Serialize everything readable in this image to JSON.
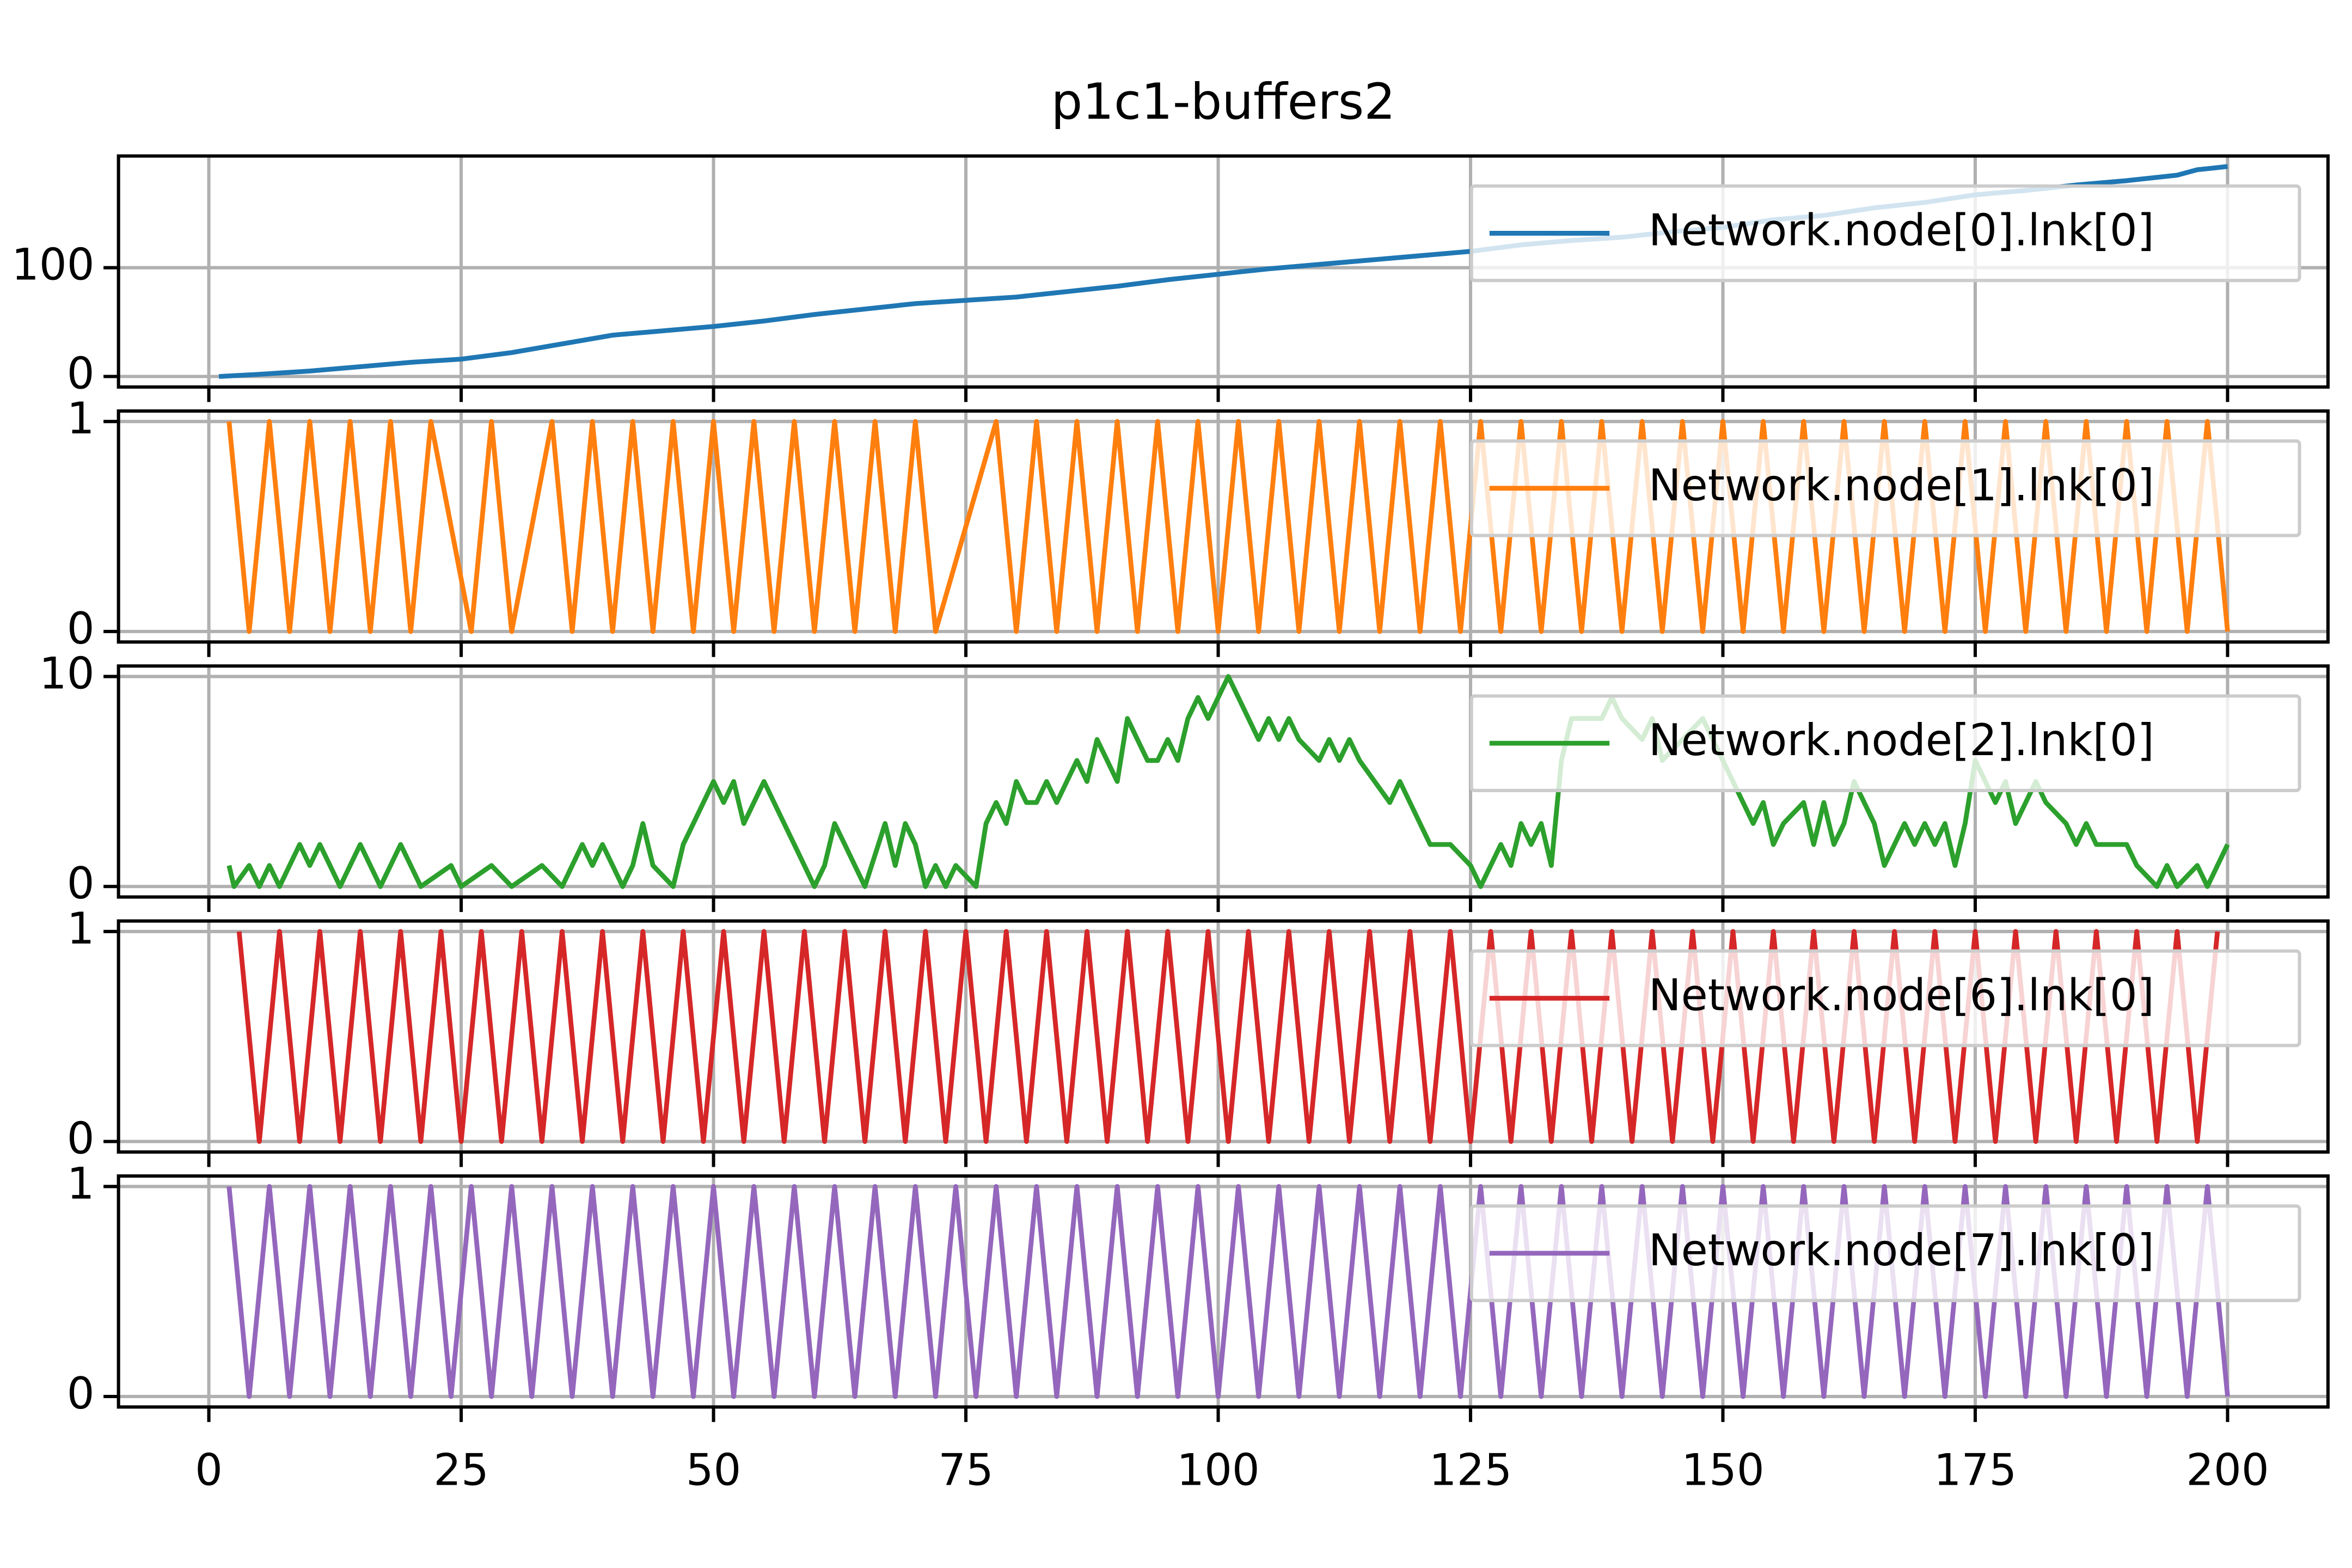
{
  "chart_data": [
    {
      "type": "line",
      "title": "p1c1-buffers2",
      "xlim": [
        -8.95,
        209.95
      ],
      "xticks": [
        0,
        25,
        50,
        75,
        100,
        125,
        150,
        175,
        200
      ],
      "ylim": [
        -9.65,
        202.65
      ],
      "yticks": [
        0,
        100
      ],
      "grid": true,
      "legend": "upper right",
      "x": [
        1,
        5,
        10,
        15,
        20,
        25,
        30,
        35,
        40,
        45,
        50,
        55,
        60,
        65,
        70,
        75,
        80,
        85,
        90,
        95,
        100,
        105,
        110,
        115,
        120,
        125,
        130,
        135,
        140,
        145,
        150,
        155,
        160,
        165,
        170,
        175,
        180,
        185,
        190,
        195,
        197,
        200
      ],
      "series": [
        {
          "name": "Network.node[0].lnk[0]",
          "color": "#1f77b4",
          "values": [
            0,
            2,
            5,
            9,
            13,
            16,
            22,
            30,
            38,
            42,
            46,
            51,
            57,
            62,
            67,
            70,
            73,
            78,
            83,
            89,
            94,
            99,
            103,
            107,
            111,
            115,
            121,
            125,
            128,
            133,
            137,
            144,
            148,
            155,
            160,
            167,
            171,
            176,
            180,
            185,
            190,
            193
          ]
        }
      ]
    },
    {
      "type": "line",
      "xlim": [
        -8.95,
        209.95
      ],
      "xticks": [
        0,
        25,
        50,
        75,
        100,
        125,
        150,
        175,
        200
      ],
      "ylim": [
        -0.05,
        1.05
      ],
      "yticks": [
        0,
        1
      ],
      "grid": true,
      "legend": "upper right",
      "x": [
        2,
        4,
        6,
        8,
        10,
        12,
        14,
        16,
        18,
        20,
        22,
        26,
        28,
        30,
        34,
        36,
        38,
        40,
        42,
        44,
        46,
        48,
        50,
        52,
        54,
        56,
        58,
        60,
        62,
        64,
        66,
        68,
        70,
        72,
        78,
        80,
        82,
        84,
        86,
        88,
        90,
        92,
        94,
        96,
        98,
        100,
        102,
        104,
        106,
        108,
        110,
        112,
        114,
        116,
        118,
        120,
        122,
        124,
        126,
        128,
        130,
        132,
        134,
        136,
        138,
        140,
        142,
        144,
        146,
        148,
        150,
        152,
        154,
        156,
        158,
        160,
        162,
        164,
        166,
        168,
        170,
        172,
        174,
        176,
        178,
        180,
        182,
        184,
        186,
        188,
        190,
        192,
        194,
        196,
        198,
        200
      ],
      "series": [
        {
          "name": "Network.node[1].lnk[0]",
          "color": "#ff7f0e",
          "values": [
            1,
            0,
            1,
            0,
            1,
            0,
            1,
            0,
            1,
            0,
            1,
            0,
            1,
            0,
            1,
            0,
            1,
            0,
            1,
            0,
            1,
            0,
            1,
            0,
            1,
            0,
            1,
            0,
            1,
            0,
            1,
            0,
            1,
            0,
            1,
            0,
            1,
            0,
            1,
            0,
            1,
            0,
            1,
            0,
            1,
            0,
            1,
            0,
            1,
            0,
            1,
            0,
            1,
            0,
            1,
            0,
            1,
            0,
            1,
            0,
            1,
            0,
            1,
            0,
            1,
            0,
            1,
            0,
            1,
            0,
            1,
            0,
            1,
            0,
            1,
            0,
            1,
            0,
            1,
            0,
            1,
            0,
            1,
            0,
            1,
            0,
            1,
            0,
            1,
            0,
            1,
            0,
            1,
            0,
            1,
            0
          ]
        }
      ]
    },
    {
      "type": "line",
      "xlim": [
        -8.95,
        209.95
      ],
      "xticks": [
        0,
        25,
        50,
        75,
        100,
        125,
        150,
        175,
        200
      ],
      "ylim": [
        -0.5,
        10.5
      ],
      "yticks": [
        0,
        10
      ],
      "grid": true,
      "legend": "upper right",
      "x": [
        2,
        2.5,
        4,
        5,
        6,
        7,
        8,
        9,
        10,
        11,
        12,
        13,
        14,
        15,
        16,
        17,
        18,
        19,
        20,
        21,
        24,
        25,
        28,
        30,
        33,
        35,
        36,
        37,
        38,
        39,
        40,
        41,
        42,
        43,
        44,
        46,
        47,
        48,
        49,
        50,
        51,
        52,
        53,
        54,
        55,
        57,
        58,
        60,
        61,
        62,
        63,
        64,
        65,
        67,
        68,
        69,
        70,
        71,
        72,
        73,
        74,
        76,
        77,
        78,
        79,
        80,
        81,
        82,
        83,
        84,
        86,
        87,
        88,
        89,
        90,
        91,
        92,
        93,
        94,
        95,
        96,
        97,
        98,
        99,
        100,
        101,
        102,
        103,
        104,
        105,
        106,
        107,
        108,
        110,
        111,
        112,
        113,
        114,
        117,
        118,
        120,
        121,
        123,
        125,
        126,
        127,
        128,
        129,
        130,
        131,
        132,
        133,
        134,
        135,
        136,
        138,
        139,
        140,
        142,
        143,
        144,
        146,
        148,
        149,
        150,
        152,
        153,
        154,
        155,
        156,
        158,
        159,
        160,
        161,
        162,
        163,
        165,
        166,
        167,
        168,
        169,
        170,
        171,
        172,
        173,
        174,
        175,
        176,
        177,
        178,
        179,
        180,
        181,
        182,
        184,
        185,
        186,
        187,
        190,
        191,
        193,
        194,
        195,
        197,
        198,
        199,
        200
      ],
      "series": [
        {
          "name": "Network.node[2].lnk[0]",
          "color": "#2ca02c",
          "values": [
            1,
            0,
            1,
            0,
            1,
            0,
            1,
            2,
            1,
            2,
            1,
            0,
            1,
            2,
            1,
            0,
            1,
            2,
            1,
            0,
            1,
            0,
            1,
            0,
            1,
            0,
            1,
            2,
            1,
            2,
            1,
            0,
            1,
            3,
            1,
            0,
            2,
            3,
            4,
            5,
            4,
            5,
            3,
            4,
            5,
            3,
            2,
            0,
            1,
            3,
            2,
            1,
            0,
            3,
            1,
            3,
            2,
            0,
            1,
            0,
            1,
            0,
            3,
            4,
            3,
            5,
            4,
            4,
            5,
            4,
            6,
            5,
            7,
            6,
            5,
            8,
            7,
            6,
            6,
            7,
            6,
            8,
            9,
            8,
            9,
            10,
            9,
            8,
            7,
            8,
            7,
            8,
            7,
            6,
            7,
            6,
            7,
            6,
            4,
            5,
            3,
            2,
            2,
            1,
            0,
            1,
            2,
            1,
            3,
            2,
            3,
            1,
            6,
            8,
            8,
            8,
            9,
            8,
            7,
            8,
            6,
            7,
            8,
            7,
            6,
            4,
            3,
            4,
            2,
            3,
            4,
            2,
            4,
            2,
            3,
            5,
            3,
            1,
            2,
            3,
            2,
            3,
            2,
            3,
            1,
            3,
            6,
            5,
            4,
            5,
            3,
            4,
            5,
            4,
            3,
            2,
            3,
            2,
            2,
            1,
            0,
            1,
            0,
            1,
            0,
            1,
            2
          ]
        }
      ]
    },
    {
      "type": "line",
      "xlim": [
        -8.95,
        209.95
      ],
      "xticks": [
        0,
        25,
        50,
        75,
        100,
        125,
        150,
        175,
        200
      ],
      "ylim": [
        -0.05,
        1.05
      ],
      "yticks": [
        0,
        1
      ],
      "grid": true,
      "legend": "upper right",
      "x": [
        3,
        5,
        7,
        9,
        11,
        13,
        15,
        17,
        19,
        21,
        23,
        25,
        27,
        29,
        31,
        33,
        35,
        37,
        39,
        41,
        43,
        45,
        47,
        49,
        51,
        53,
        55,
        57,
        59,
        61,
        63,
        65,
        67,
        69,
        71,
        73,
        75,
        77,
        79,
        81,
        83,
        85,
        87,
        89,
        91,
        93,
        95,
        97,
        99,
        101,
        103,
        105,
        107,
        109,
        111,
        113,
        115,
        117,
        119,
        121,
        123,
        125,
        127,
        129,
        131,
        133,
        135,
        137,
        139,
        141,
        143,
        145,
        147,
        149,
        151,
        153,
        155,
        157,
        159,
        161,
        163,
        165,
        167,
        169,
        171,
        173,
        175,
        177,
        179,
        181,
        183,
        185,
        187,
        189,
        191,
        193,
        195,
        197,
        199
      ],
      "series": [
        {
          "name": "Network.node[6].lnk[0]",
          "color": "#d62728",
          "values": [
            1,
            0,
            1,
            0,
            1,
            0,
            1,
            0,
            1,
            0,
            1,
            0,
            1,
            0,
            1,
            0,
            1,
            0,
            1,
            0,
            1,
            0,
            1,
            0,
            1,
            0,
            1,
            0,
            1,
            0,
            1,
            0,
            1,
            0,
            1,
            0,
            1,
            0,
            1,
            0,
            1,
            0,
            1,
            0,
            1,
            0,
            1,
            0,
            1,
            0,
            1,
            0,
            1,
            0,
            1,
            0,
            1,
            0,
            1,
            0,
            1,
            0,
            1,
            0,
            1,
            0,
            1,
            0,
            1,
            0,
            1,
            0,
            1,
            0,
            1,
            0,
            1,
            0,
            1,
            0,
            1,
            0,
            1,
            0,
            1,
            0,
            1,
            0,
            1,
            0,
            1,
            0,
            1,
            0,
            1,
            0,
            1,
            0,
            1
          ]
        }
      ]
    },
    {
      "type": "line",
      "xlim": [
        -8.95,
        209.95
      ],
      "xticks": [
        0,
        25,
        50,
        75,
        100,
        125,
        150,
        175,
        200
      ],
      "ylim": [
        -0.05,
        1.05
      ],
      "yticks": [
        0,
        1
      ],
      "grid": true,
      "legend": "upper right",
      "x": [
        2,
        4,
        6,
        8,
        10,
        12,
        14,
        16,
        18,
        20,
        22,
        24,
        26,
        28,
        30,
        32,
        34,
        36,
        38,
        40,
        42,
        44,
        46,
        48,
        50,
        52,
        54,
        56,
        58,
        60,
        62,
        64,
        66,
        68,
        70,
        72,
        74,
        76,
        78,
        80,
        82,
        84,
        86,
        88,
        90,
        92,
        94,
        96,
        98,
        100,
        102,
        104,
        106,
        108,
        110,
        112,
        114,
        116,
        118,
        120,
        122,
        124,
        126,
        128,
        130,
        132,
        134,
        136,
        138,
        140,
        142,
        144,
        146,
        148,
        150,
        152,
        154,
        156,
        158,
        160,
        162,
        164,
        166,
        168,
        170,
        172,
        174,
        176,
        178,
        180,
        182,
        184,
        186,
        188,
        190,
        192,
        194,
        196,
        198,
        200
      ],
      "series": [
        {
          "name": "Network.node[7].lnk[0]",
          "color": "#9467bd",
          "values": [
            1,
            0,
            1,
            0,
            1,
            0,
            1,
            0,
            1,
            0,
            1,
            0,
            1,
            0,
            1,
            0,
            1,
            0,
            1,
            0,
            1,
            0,
            1,
            0,
            1,
            0,
            1,
            0,
            1,
            0,
            1,
            0,
            1,
            0,
            1,
            0,
            1,
            0,
            1,
            0,
            1,
            0,
            1,
            0,
            1,
            0,
            1,
            0,
            1,
            0,
            1,
            0,
            1,
            0,
            1,
            0,
            1,
            0,
            1,
            0,
            1,
            0,
            1,
            0,
            1,
            0,
            1,
            0,
            1,
            0,
            1,
            0,
            1,
            0,
            1,
            0,
            1,
            0,
            1,
            0,
            1,
            0,
            1,
            0,
            1,
            0,
            1,
            0,
            1,
            0,
            1,
            0,
            1,
            0,
            1,
            0,
            1,
            0,
            1,
            0
          ]
        }
      ]
    }
  ]
}
